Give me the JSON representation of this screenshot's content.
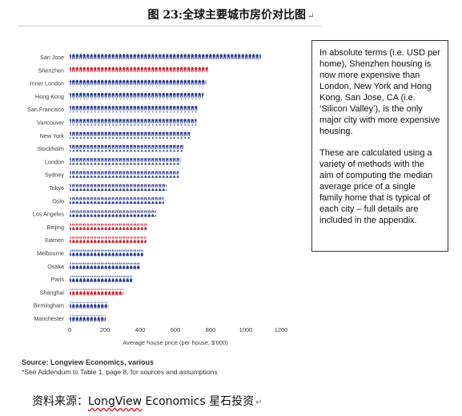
{
  "page": {
    "title": "图 23:全球主要城市房价对比图",
    "pilcrow": "↵"
  },
  "note": {
    "para1": "In absolute terms (i.e. USD per home), Shenzhen housing is now more expensive than London, New York and Hong Kong. San Jose, CA (i.e. ‘Silicon Valley’), is the only major city with more expensive housing.",
    "para2": "These are calculated using a variety of methods with the aim of computing the median average price of a single family home that is typical of each city – full details are included in the appendix."
  },
  "source": {
    "line1": "Source: Longview Economics, various",
    "line2": "*See Addendum to Table 1, page 8, for sources and assumptions"
  },
  "footer": {
    "prefix": "资料来源：",
    "brand": "LongView",
    "suffix": " Economics  星石投资",
    "pilcrow": "↵"
  },
  "chart_data": {
    "type": "bar",
    "orientation": "horizontal",
    "title": "",
    "xlabel": "Average house price (per house, $'000)",
    "ylabel": "",
    "xlim": [
      0,
      1200
    ],
    "xticks": [
      0,
      200,
      400,
      600,
      800,
      1000,
      1200
    ],
    "grid": false,
    "legend": "none",
    "categories": [
      "San Jose",
      "Shenzhen",
      "Inner London",
      "Hong Kong",
      "San Francisco",
      "Vancouver",
      "New York",
      "Stockholm",
      "London",
      "Sydney",
      "Tokyo",
      "Oslo",
      "Los Angeles",
      "Beijing",
      "Xiamen",
      "Melbourne",
      "Osaka",
      "Paris",
      "Shanghai",
      "Birmingham",
      "Manchester"
    ],
    "values": [
      1085,
      785,
      775,
      760,
      725,
      720,
      685,
      650,
      630,
      620,
      550,
      535,
      490,
      440,
      435,
      420,
      400,
      355,
      305,
      220,
      205
    ],
    "highlight": [
      "Shenzhen",
      "Beijing",
      "Xiamen",
      "Shanghai"
    ],
    "colors": {
      "default": "#2e3d8f",
      "highlight": "#cc2b38"
    }
  }
}
